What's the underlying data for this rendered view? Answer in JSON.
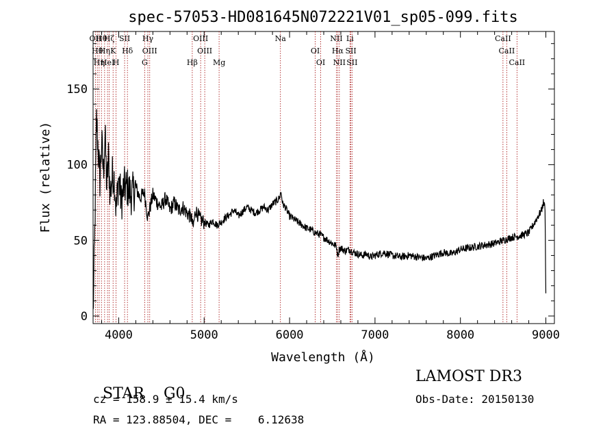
{
  "chart_data": {
    "type": "line",
    "title": "spec-57053-HD081645N072221V01_sp05-099.fits",
    "xlabel": "Wavelength (Å)",
    "ylabel": "Flux (relative)",
    "xlim": [
      3700,
      9100
    ],
    "ylim": [
      -5,
      188
    ],
    "x_ticks": [
      4000,
      5000,
      6000,
      7000,
      8000,
      9000
    ],
    "y_ticks": [
      0,
      50,
      100,
      150
    ],
    "grid": false,
    "line_color": "#000000",
    "marker_color": "#a00000",
    "series": [
      {
        "x": [
          3700,
          3720,
          3740,
          3760,
          3780,
          3800,
          3820,
          3840,
          3860,
          3880,
          3900,
          3930,
          3950,
          3970,
          4000,
          4030,
          4060,
          4100,
          4150,
          4200,
          4250,
          4300,
          4340,
          4400,
          4450,
          4500,
          4550,
          4600,
          4650,
          4700,
          4750,
          4800,
          4850,
          4870,
          4900,
          4950,
          5000,
          5050,
          5100,
          5150,
          5200,
          5250,
          5300,
          5350,
          5400,
          5450,
          5500,
          5550,
          5600,
          5650,
          5700,
          5750,
          5800,
          5850,
          5880,
          5900,
          5920,
          5950,
          6000,
          6050,
          6100,
          6150,
          6200,
          6250,
          6300,
          6350,
          6400,
          6450,
          6500,
          6550,
          6563,
          6580,
          6600,
          6650,
          6700,
          6750,
          6800,
          6850,
          6900,
          6950,
          7000,
          7100,
          7200,
          7300,
          7400,
          7500,
          7600,
          7700,
          7800,
          7900,
          8000,
          8100,
          8200,
          8300,
          8400,
          8500,
          8600,
          8700,
          8800,
          8850,
          8900,
          8950,
          8970,
          8990,
          9000
        ],
        "y": [
          0,
          55,
          130,
          110,
          90,
          115,
          95,
          120,
          85,
          105,
          80,
          95,
          90,
          70,
          92,
          75,
          85,
          85,
          80,
          85,
          78,
          82,
          65,
          80,
          75,
          72,
          78,
          70,
          75,
          70,
          72,
          68,
          65,
          58,
          70,
          64,
          62,
          60,
          63,
          60,
          62,
          65,
          67,
          70,
          66,
          69,
          72,
          70,
          68,
          70,
          72,
          70,
          74,
          76,
          78,
          82,
          74,
          72,
          66,
          64,
          62,
          60,
          58,
          57,
          55,
          54,
          52,
          50,
          48,
          46,
          40,
          44,
          45,
          43,
          44,
          42,
          41,
          40,
          41,
          39,
          40,
          42,
          40,
          39,
          40,
          39,
          38,
          40,
          42,
          41,
          44,
          45,
          46,
          47,
          48,
          50,
          52,
          53,
          55,
          60,
          65,
          70,
          75,
          72,
          15
        ]
      }
    ],
    "lines_top": [
      {
        "x": 3727,
        "label": "OII"
      },
      {
        "x": 3750,
        "label": "Hθ"
      },
      {
        "x": 3771,
        "label": "Hη"
      },
      {
        "x": 3798,
        "label": "Hθ"
      },
      {
        "x": 3835,
        "label": "Hη"
      },
      {
        "x": 3869,
        "label": "HeI"
      },
      {
        "x": 3889,
        "label": "Hζ"
      },
      {
        "x": 3934,
        "label": "K"
      },
      {
        "x": 3969,
        "label": "H"
      },
      {
        "x": 4069,
        "label": "SII"
      },
      {
        "x": 4102,
        "label": "Hδ"
      },
      {
        "x": 4304,
        "label": "G"
      },
      {
        "x": 4341,
        "label": "Hγ"
      },
      {
        "x": 4363,
        "label": "OIII"
      },
      {
        "x": 4861,
        "label": "Hβ"
      },
      {
        "x": 4959,
        "label": "OIII"
      },
      {
        "x": 5007,
        "label": "OIII"
      },
      {
        "x": 5175,
        "label": "Mg"
      },
      {
        "x": 5893,
        "label": "Na"
      },
      {
        "x": 6300,
        "label": "OI"
      },
      {
        "x": 6364,
        "label": "OI"
      },
      {
        "x": 6548,
        "label": "NII"
      },
      {
        "x": 6563,
        "label": "Hα"
      },
      {
        "x": 6583,
        "label": "NII"
      },
      {
        "x": 6707,
        "label": "Li"
      },
      {
        "x": 6717,
        "label": "SII"
      },
      {
        "x": 6731,
        "label": "SII"
      },
      {
        "x": 8498,
        "label": "CaII"
      },
      {
        "x": 8542,
        "label": "CaII"
      },
      {
        "x": 8662,
        "label": "CaII"
      }
    ]
  },
  "info": {
    "class": "STAR",
    "subclass": "G0",
    "survey": "LAMOST DR3",
    "cz": "cz = 158.9 ± 15.4 km/s",
    "obs_date": "Obs-Date: 20150130",
    "radec": "RA = 123.88504, DEC =    6.12638"
  }
}
